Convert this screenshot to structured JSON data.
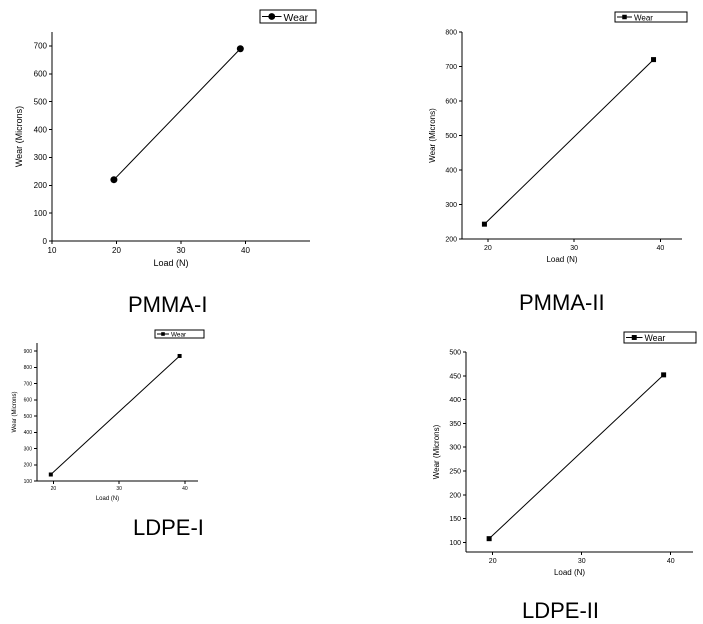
{
  "chart_data": [
    {
      "type": "line",
      "caption": "PMMA-I",
      "xlabel": "Load (N)",
      "ylabel": "Wear (Microns)",
      "xlim": [
        10,
        50
      ],
      "ylim": [
        0,
        750
      ],
      "xticks": [
        10,
        20,
        30,
        40
      ],
      "yticks": [
        0,
        100,
        200,
        300,
        400,
        500,
        600,
        700
      ],
      "marker": "circle",
      "legend": "top-right",
      "series": [
        {
          "name": "Wear",
          "x": [
            19.6,
            39.2
          ],
          "y": [
            220,
            690
          ]
        }
      ]
    },
    {
      "type": "line",
      "caption": "PMMA-II",
      "xlabel": "Load (N)",
      "ylabel": "Wear (Microns)",
      "xlim": [
        17,
        42.5
      ],
      "ylim": [
        200,
        800
      ],
      "xticks": [
        20,
        30,
        40
      ],
      "yticks": [
        200,
        300,
        400,
        500,
        600,
        700,
        800
      ],
      "marker": "square",
      "legend": "top-right",
      "series": [
        {
          "name": "Wear",
          "x": [
            19.6,
            39.2
          ],
          "y": [
            243,
            720
          ]
        }
      ]
    },
    {
      "type": "line",
      "caption": "LDPE-I",
      "xlabel": "Load (N)",
      "ylabel": "Wear (Microns)",
      "xlim": [
        17.5,
        42
      ],
      "ylim": [
        100,
        950
      ],
      "xticks": [
        20,
        30,
        40
      ],
      "yticks": [
        100,
        200,
        300,
        400,
        500,
        600,
        700,
        800,
        900
      ],
      "marker": "square",
      "legend": "top-right",
      "series": [
        {
          "name": "Wear",
          "x": [
            19.6,
            39.2
          ],
          "y": [
            140,
            870
          ]
        }
      ]
    },
    {
      "type": "line",
      "caption": "LDPE-II",
      "xlabel": "Load (N)",
      "ylabel": "Wear (Microns)",
      "xlim": [
        17,
        42.5
      ],
      "ylim": [
        80,
        500
      ],
      "xticks": [
        20,
        30,
        40
      ],
      "yticks": [
        100,
        150,
        200,
        250,
        300,
        350,
        400,
        450,
        500
      ],
      "marker": "square",
      "legend": "top-right",
      "series": [
        {
          "name": "Wear",
          "x": [
            19.6,
            39.2
          ],
          "y": [
            108,
            452
          ]
        }
      ]
    }
  ]
}
